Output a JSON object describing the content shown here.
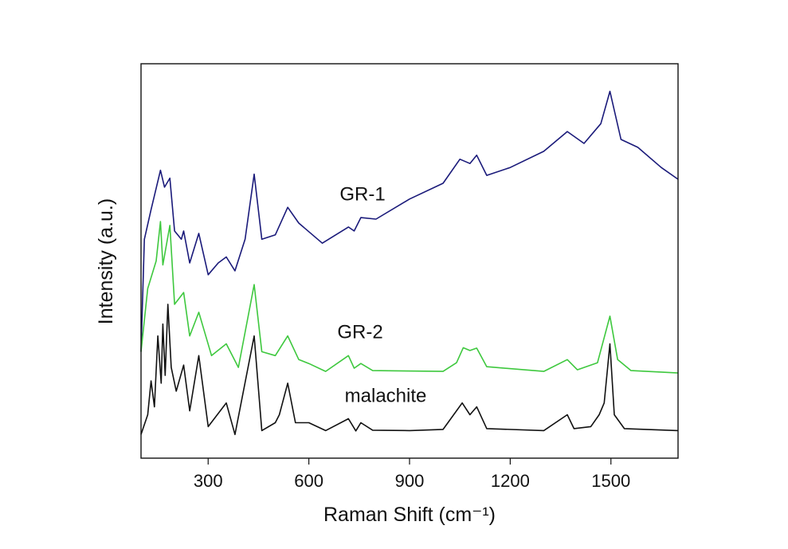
{
  "chart_data": {
    "type": "line",
    "xlabel": "Raman Shift (cm⁻¹)",
    "ylabel": "Intensity (a.u.)",
    "xlim": [
      100,
      1700
    ],
    "ylim": [
      0,
      100
    ],
    "xticks": [
      300,
      600,
      900,
      1200,
      1500
    ],
    "annotations": [
      "GR-1",
      "GR-2",
      "malachite"
    ],
    "series": [
      {
        "name": "GR-1",
        "color": "#1a1a7a",
        "x": [
          100,
          110,
          130,
          158,
          170,
          186,
          200,
          220,
          227,
          245,
          272,
          300,
          330,
          354,
          380,
          410,
          437,
          460,
          500,
          537,
          570,
          640,
          718,
          735,
          755,
          800,
          900,
          1000,
          1050,
          1080,
          1100,
          1130,
          1200,
          1300,
          1370,
          1420,
          1470,
          1497,
          1530,
          1580,
          1650,
          1700
        ],
        "values": [
          27,
          55.5,
          63,
          73,
          68.7,
          71,
          57.6,
          55.5,
          57.6,
          49.5,
          57,
          46.5,
          49.5,
          51,
          47.5,
          55.5,
          72,
          55.5,
          56.6,
          63.6,
          59.6,
          54.5,
          58.6,
          57.6,
          61,
          60.6,
          65.7,
          69.7,
          75.8,
          74.7,
          76.8,
          71.7,
          73.7,
          77.8,
          82.8,
          79.8,
          84.8,
          93,
          80.8,
          78.8,
          73.7,
          70.7
        ]
      },
      {
        "name": "GR-2",
        "color": "#3ec83e",
        "x": [
          100,
          120,
          145,
          158,
          165,
          186,
          200,
          227,
          245,
          272,
          310,
          354,
          390,
          437,
          460,
          500,
          537,
          570,
          600,
          650,
          718,
          735,
          755,
          790,
          1000,
          1040,
          1060,
          1080,
          1100,
          1130,
          1300,
          1370,
          1400,
          1460,
          1497,
          1520,
          1560,
          1700
        ],
        "values": [
          27,
          43,
          50,
          60,
          49,
          59,
          39,
          42,
          31,
          37,
          26,
          29,
          23,
          44,
          27,
          26,
          31,
          25,
          24,
          22,
          26,
          22.8,
          24,
          22.2,
          22,
          24.2,
          28,
          27.3,
          27.9,
          23.2,
          22,
          25,
          22.4,
          24.2,
          36,
          25,
          22.2,
          21.6
        ]
      },
      {
        "name": "malachite",
        "color": "#111111",
        "x": [
          100,
          120,
          130,
          140,
          150,
          160,
          165,
          172,
          180,
          190,
          205,
          227,
          245,
          272,
          300,
          354,
          380,
          437,
          460,
          500,
          512,
          537,
          560,
          600,
          650,
          718,
          740,
          755,
          790,
          900,
          1000,
          1057,
          1080,
          1100,
          1130,
          1300,
          1370,
          1390,
          1440,
          1465,
          1480,
          1497,
          1510,
          1540,
          1700
        ],
        "values": [
          6,
          11,
          19.6,
          13,
          31,
          19,
          34,
          21,
          39,
          23,
          17,
          23.6,
          12,
          26,
          8,
          14,
          6,
          31,
          7,
          9,
          11,
          19,
          9,
          9,
          7,
          10,
          6.9,
          9,
          7.1,
          7,
          7.3,
          14,
          11,
          13,
          7.5,
          7,
          11,
          7.5,
          8,
          11,
          14,
          29,
          11,
          7.5,
          7
        ]
      }
    ]
  }
}
